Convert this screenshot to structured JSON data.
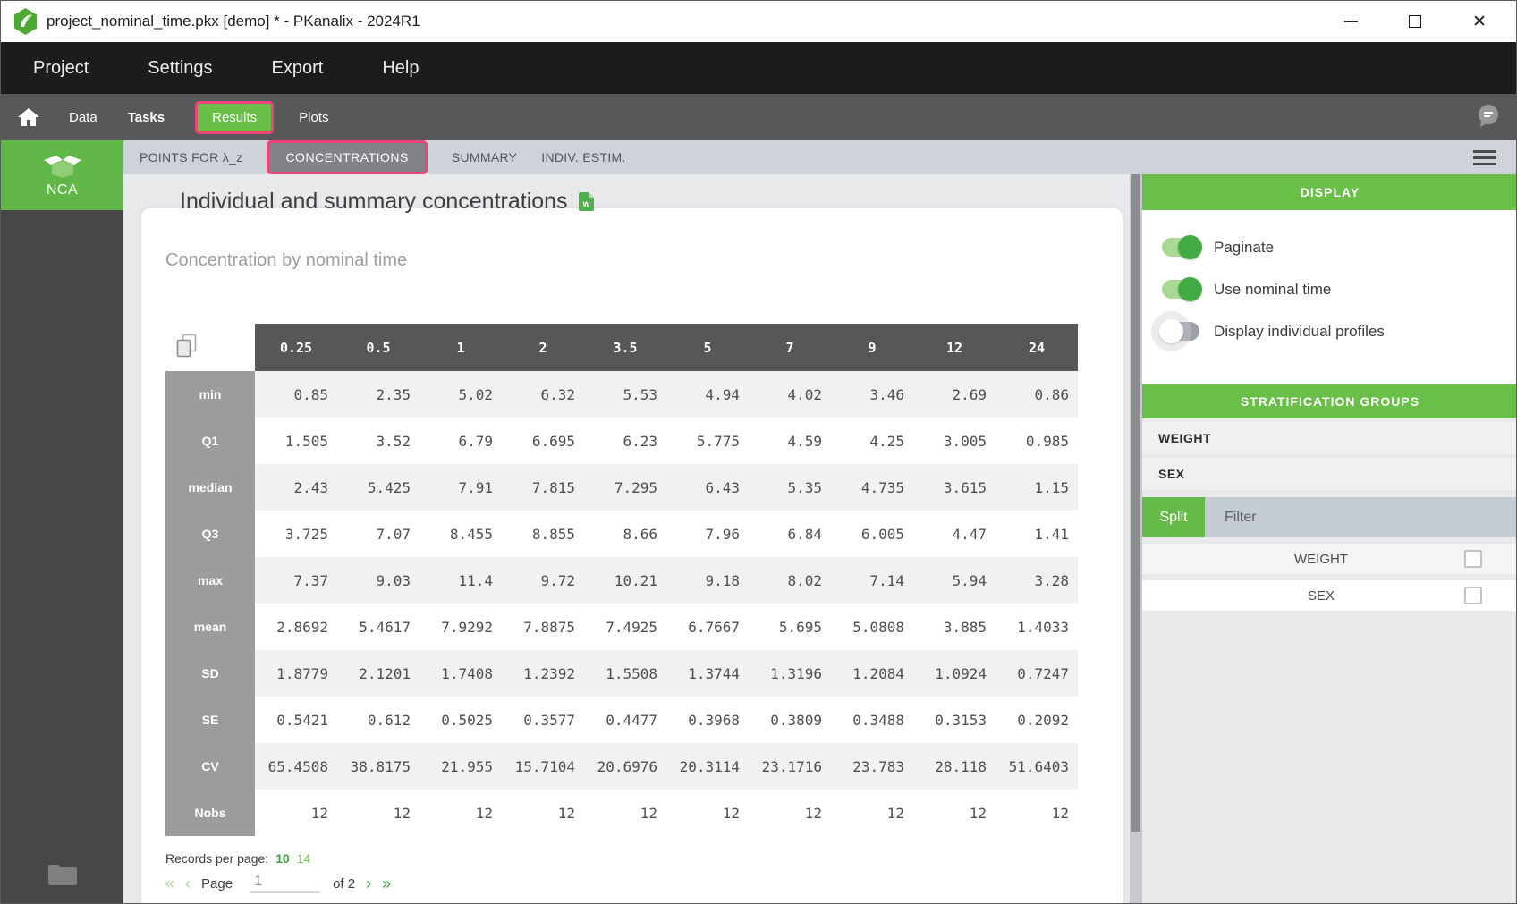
{
  "titlebar": {
    "title": "project_nominal_time.pkx [demo] * - PKanalix - 2024R1"
  },
  "menubar": {
    "items": [
      "Project",
      "Settings",
      "Export",
      "Help"
    ]
  },
  "tabbar": {
    "items": [
      {
        "label": "Data",
        "active": false,
        "bold": false
      },
      {
        "label": "Tasks",
        "active": false,
        "bold": true
      },
      {
        "label": "Results",
        "active": true,
        "bold": false
      },
      {
        "label": "Plots",
        "active": false,
        "bold": false
      }
    ]
  },
  "subtabbar": {
    "items": [
      {
        "label": "POINTS FOR λ_z",
        "active": false
      },
      {
        "label": "CONCENTRATIONS",
        "active": true
      },
      {
        "label": "SUMMARY",
        "active": false
      },
      {
        "label": "INDIV. ESTIM.",
        "active": false
      }
    ]
  },
  "sidebar": {
    "task": "NCA"
  },
  "results": {
    "title": "Individual and summary concentrations",
    "subtitle": "Concentration by nominal time"
  },
  "table": {
    "columns": [
      "0.25",
      "0.5",
      "1",
      "2",
      "3.5",
      "5",
      "7",
      "9",
      "12",
      "24"
    ],
    "rows": [
      {
        "label": "min",
        "values": [
          "0.85",
          "2.35",
          "5.02",
          "6.32",
          "5.53",
          "4.94",
          "4.02",
          "3.46",
          "2.69",
          "0.86"
        ]
      },
      {
        "label": "Q1",
        "values": [
          "1.505",
          "3.52",
          "6.79",
          "6.695",
          "6.23",
          "5.775",
          "4.59",
          "4.25",
          "3.005",
          "0.985"
        ]
      },
      {
        "label": "median",
        "values": [
          "2.43",
          "5.425",
          "7.91",
          "7.815",
          "7.295",
          "6.43",
          "5.35",
          "4.735",
          "3.615",
          "1.15"
        ]
      },
      {
        "label": "Q3",
        "values": [
          "3.725",
          "7.07",
          "8.455",
          "8.855",
          "8.66",
          "7.96",
          "6.84",
          "6.005",
          "4.47",
          "1.41"
        ]
      },
      {
        "label": "max",
        "values": [
          "7.37",
          "9.03",
          "11.4",
          "9.72",
          "10.21",
          "9.18",
          "8.02",
          "7.14",
          "5.94",
          "3.28"
        ]
      },
      {
        "label": "mean",
        "values": [
          "2.8692",
          "5.4617",
          "7.9292",
          "7.8875",
          "7.4925",
          "6.7667",
          "5.695",
          "5.0808",
          "3.885",
          "1.4033"
        ]
      },
      {
        "label": "SD",
        "values": [
          "1.8779",
          "2.1201",
          "1.7408",
          "1.2392",
          "1.5508",
          "1.3744",
          "1.3196",
          "1.2084",
          "1.0924",
          "0.7247"
        ]
      },
      {
        "label": "SE",
        "values": [
          "0.5421",
          "0.612",
          "0.5025",
          "0.3577",
          "0.4477",
          "0.3968",
          "0.3809",
          "0.3488",
          "0.3153",
          "0.2092"
        ]
      },
      {
        "label": "CV",
        "values": [
          "65.4508",
          "38.8175",
          "21.955",
          "15.7104",
          "20.6976",
          "20.3114",
          "23.1716",
          "23.783",
          "28.118",
          "51.6403"
        ]
      },
      {
        "label": "Nobs",
        "values": [
          "12",
          "12",
          "12",
          "12",
          "12",
          "12",
          "12",
          "12",
          "12",
          "12"
        ]
      }
    ]
  },
  "pagination": {
    "records_label": "Records per page:",
    "options": [
      {
        "label": "10",
        "selected": true
      },
      {
        "label": "14",
        "selected": false
      }
    ],
    "page_label": "Page",
    "page_value": "1",
    "of_label": "of 2"
  },
  "display_panel": {
    "header": "DISPLAY",
    "toggles": [
      {
        "label": "Paginate",
        "on": true
      },
      {
        "label": "Use nominal time",
        "on": true
      },
      {
        "label": "Display individual profiles",
        "on": false
      }
    ]
  },
  "stratification_panel": {
    "header": "STRATIFICATION GROUPS",
    "groups": [
      "WEIGHT",
      "SEX"
    ],
    "mode_tabs": [
      {
        "label": "Split",
        "active": true
      },
      {
        "label": "Filter",
        "active": false
      }
    ],
    "covariate_rows": [
      {
        "label": "WEIGHT",
        "checked": false
      },
      {
        "label": "SEX",
        "checked": false
      }
    ]
  },
  "icons": {
    "close": "✕",
    "word_letter": "w",
    "first_page": "«",
    "prev_page": "‹",
    "next_page": "›",
    "last_page": "»",
    "names": [
      "app-logo-icon",
      "home-icon",
      "comment-icon",
      "hamburger-menu-icon",
      "copy-table-icon",
      "word-export-icon",
      "nca-box-icon",
      "folder-icon",
      "minimize-icon",
      "maximize-icon",
      "close-icon"
    ]
  },
  "colors": {
    "accent_green": "#69be48",
    "highlight_pink": "#f0437c",
    "toggle_on_knob": "#43ab44",
    "table_header_dark": "#57575a",
    "row_header_gray": "#9c9c9f"
  }
}
